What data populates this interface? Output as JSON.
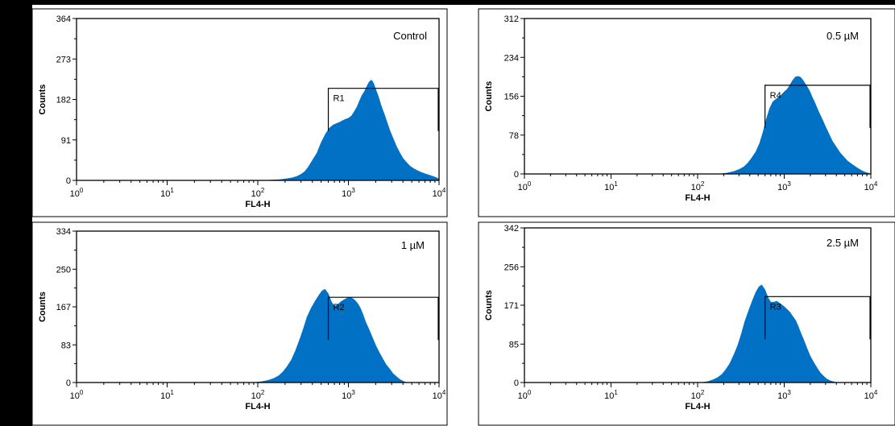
{
  "chart_data": [
    {
      "type": "area",
      "title": "",
      "condition_label": "Control",
      "xlabel": "FL4-H",
      "ylabel": "Counts",
      "x_scale": "log",
      "xlim": [
        1,
        10000
      ],
      "x_ticks": [
        "0",
        "1",
        "2",
        "3",
        "4"
      ],
      "x_tick_base": "10",
      "ylim": [
        0,
        364
      ],
      "y_ticks": [
        "0",
        "91",
        "182",
        "273",
        "364"
      ],
      "grid": false,
      "gate": {
        "name": "R1",
        "x_start": 600,
        "x_end": 10000,
        "y": 207
      },
      "histogram": {
        "x": [
          120,
          150,
          180,
          210,
          240,
          270,
          300,
          330,
          360,
          400,
          450,
          500,
          560,
          620,
          680,
          740,
          800,
          870,
          940,
          1000,
          1080,
          1160,
          1240,
          1320,
          1400,
          1500,
          1600,
          1700,
          1800,
          1900,
          2000,
          2150,
          2300,
          2500,
          2700,
          2900,
          3150,
          3400,
          3700,
          4000,
          4400,
          4800,
          5300,
          5800,
          6400,
          7000,
          7800,
          8600,
          9400,
          10000
        ],
        "y": [
          0,
          1,
          2,
          4,
          6,
          9,
          14,
          20,
          30,
          45,
          62,
          85,
          105,
          118,
          125,
          128,
          131,
          135,
          138,
          140,
          145,
          155,
          165,
          178,
          190,
          200,
          212,
          222,
          226,
          218,
          205,
          188,
          168,
          148,
          128,
          110,
          92,
          76,
          62,
          50,
          40,
          32,
          26,
          22,
          18,
          15,
          12,
          9,
          6,
          3
        ]
      }
    },
    {
      "type": "area",
      "title": "",
      "condition_label": "0.5 µM",
      "xlabel": "FL4-H",
      "ylabel": "Counts",
      "x_scale": "log",
      "xlim": [
        1,
        10000
      ],
      "x_ticks": [
        "0",
        "1",
        "2",
        "3",
        "4"
      ],
      "x_tick_base": "10",
      "ylim": [
        0,
        312
      ],
      "y_ticks": [
        "0",
        "78",
        "156",
        "234",
        "312"
      ],
      "grid": false,
      "gate": {
        "name": "R4",
        "x_start": 600,
        "x_end": 10000,
        "y": 178
      },
      "histogram": {
        "x": [
          180,
          220,
          260,
          300,
          340,
          380,
          420,
          470,
          520,
          570,
          620,
          680,
          740,
          800,
          870,
          940,
          1000,
          1080,
          1160,
          1250,
          1350,
          1450,
          1550,
          1650,
          1800,
          1950,
          2100,
          2300,
          2500,
          2750,
          3000,
          3300,
          3600,
          4000,
          4400,
          4900,
          5400,
          6000,
          6600,
          7300,
          8000,
          8800,
          9600
        ],
        "y": [
          0,
          2,
          5,
          9,
          14,
          22,
          32,
          45,
          62,
          85,
          110,
          132,
          145,
          150,
          155,
          160,
          165,
          170,
          178,
          188,
          195,
          196,
          194,
          188,
          178,
          168,
          155,
          140,
          125,
          110,
          95,
          80,
          66,
          54,
          43,
          34,
          26,
          20,
          15,
          10,
          6,
          3,
          1
        ]
      }
    },
    {
      "type": "area",
      "title": "",
      "condition_label": "1 µM",
      "xlabel": "FL4-H",
      "ylabel": "Counts",
      "x_scale": "log",
      "xlim": [
        1,
        10000
      ],
      "x_ticks": [
        "0",
        "1",
        "2",
        "3",
        "4"
      ],
      "x_tick_base": "10",
      "ylim": [
        0,
        334
      ],
      "y_ticks": [
        "0",
        "83",
        "167",
        "250",
        "334"
      ],
      "grid": false,
      "gate": {
        "name": "R2",
        "x_start": 600,
        "x_end": 10000,
        "y": 188
      },
      "histogram": {
        "x": [
          90,
          110,
          130,
          150,
          170,
          190,
          210,
          235,
          260,
          290,
          320,
          350,
          390,
          430,
          470,
          510,
          550,
          600,
          650,
          700,
          760,
          820,
          880,
          940,
          1000,
          1080,
          1160,
          1250,
          1350,
          1450,
          1550,
          1700,
          1850,
          2000,
          2200,
          2400,
          2600,
          2850,
          3100,
          3400,
          3700,
          4000,
          4400
        ],
        "y": [
          0,
          2,
          5,
          9,
          15,
          24,
          35,
          50,
          70,
          95,
          120,
          145,
          165,
          180,
          192,
          202,
          206,
          196,
          178,
          168,
          172,
          178,
          182,
          185,
          188,
          187,
          183,
          176,
          165,
          150,
          134,
          116,
          98,
          82,
          66,
          52,
          40,
          30,
          20,
          13,
          7,
          3,
          0
        ]
      }
    },
    {
      "type": "area",
      "title": "",
      "condition_label": "2.5 µM",
      "xlabel": "FL4-H",
      "ylabel": "Counts",
      "x_scale": "log",
      "xlim": [
        1,
        10000
      ],
      "x_ticks": [
        "0",
        "1",
        "2",
        "3",
        "4"
      ],
      "x_tick_base": "10",
      "ylim": [
        0,
        342
      ],
      "y_ticks": [
        "0",
        "85",
        "171",
        "256",
        "342"
      ],
      "grid": false,
      "gate": {
        "name": "R3",
        "x_start": 600,
        "x_end": 10000,
        "y": 190
      },
      "histogram": {
        "x": [
          110,
          130,
          150,
          170,
          190,
          210,
          235,
          260,
          290,
          320,
          350,
          390,
          430,
          470,
          510,
          550,
          600,
          650,
          700,
          760,
          820,
          880,
          940,
          1000,
          1080,
          1160,
          1250,
          1350,
          1450,
          1550,
          1700,
          1850,
          2000,
          2200,
          2400,
          2600,
          2850,
          3100,
          3400,
          3700,
          4000
        ],
        "y": [
          0,
          2,
          6,
          11,
          18,
          28,
          42,
          60,
          82,
          108,
          135,
          160,
          182,
          200,
          212,
          216,
          205,
          188,
          178,
          178,
          180,
          176,
          172,
          168,
          162,
          156,
          147,
          138,
          125,
          110,
          92,
          74,
          58,
          44,
          32,
          22,
          14,
          8,
          4,
          2,
          0
        ]
      }
    }
  ]
}
